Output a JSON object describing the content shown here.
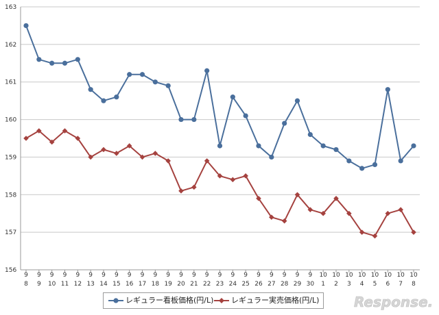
{
  "chart_data": {
    "type": "line",
    "categories": [
      [
        "9",
        "8"
      ],
      [
        "9",
        "9"
      ],
      [
        "9",
        "10"
      ],
      [
        "9",
        "11"
      ],
      [
        "9",
        "12"
      ],
      [
        "9",
        "13"
      ],
      [
        "9",
        "14"
      ],
      [
        "9",
        "15"
      ],
      [
        "9",
        "16"
      ],
      [
        "9",
        "17"
      ],
      [
        "9",
        "18"
      ],
      [
        "9",
        "19"
      ],
      [
        "9",
        "20"
      ],
      [
        "9",
        "21"
      ],
      [
        "9",
        "22"
      ],
      [
        "9",
        "23"
      ],
      [
        "9",
        "24"
      ],
      [
        "9",
        "25"
      ],
      [
        "9",
        "26"
      ],
      [
        "9",
        "27"
      ],
      [
        "9",
        "28"
      ],
      [
        "9",
        "29"
      ],
      [
        "9",
        "30"
      ],
      [
        "10",
        "1"
      ],
      [
        "10",
        "2"
      ],
      [
        "10",
        "3"
      ],
      [
        "10",
        "4"
      ],
      [
        "10",
        "5"
      ],
      [
        "10",
        "6"
      ],
      [
        "10",
        "7"
      ],
      [
        "10",
        "8"
      ]
    ],
    "series": [
      {
        "name": "レギュラー看板価格(円/L)",
        "color": "#4a6f9c",
        "marker": "circle",
        "values": [
          162.5,
          161.6,
          161.5,
          161.5,
          161.6,
          160.8,
          160.5,
          160.6,
          161.2,
          161.2,
          161.0,
          160.9,
          160.0,
          160.0,
          161.3,
          159.3,
          160.6,
          160.1,
          159.3,
          159.0,
          159.9,
          160.5,
          159.6,
          159.3,
          159.2,
          158.9,
          158.7,
          158.8,
          160.8,
          158.9,
          159.3
        ]
      },
      {
        "name": "レギュラー実売価格(円/L)",
        "color": "#a5423f",
        "marker": "diamond",
        "values": [
          159.5,
          159.7,
          159.4,
          159.7,
          159.5,
          159.0,
          159.2,
          159.1,
          159.3,
          159.0,
          159.1,
          158.9,
          158.1,
          158.2,
          158.9,
          158.5,
          158.4,
          158.5,
          157.9,
          157.4,
          157.3,
          158.0,
          157.6,
          157.5,
          157.9,
          157.5,
          157.0,
          156.9,
          157.5,
          157.6,
          157.0
        ]
      }
    ],
    "ylim": [
      156,
      163
    ],
    "yticks": [
      "156",
      "157",
      "158",
      "159",
      "160",
      "161",
      "162",
      "163"
    ],
    "grid": true,
    "legend_position": "bottom"
  },
  "watermark": {
    "text": "Response."
  }
}
